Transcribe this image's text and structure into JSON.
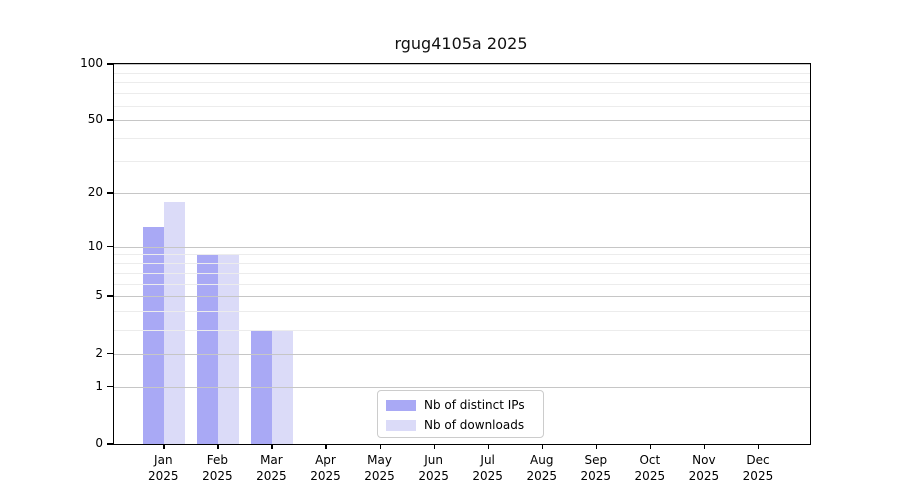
{
  "chart_data": {
    "type": "bar",
    "title": "rgug4105a 2025",
    "categories": [
      "Jan",
      "Feb",
      "Mar",
      "Apr",
      "May",
      "Jun",
      "Jul",
      "Aug",
      "Sep",
      "Oct",
      "Nov",
      "Dec"
    ],
    "category_year": "2025",
    "series": [
      {
        "name": "Nb of distinct IPs",
        "color": "#a9a9f5",
        "values": [
          13,
          9,
          3,
          0,
          0,
          0,
          0,
          0,
          0,
          0,
          0,
          0
        ]
      },
      {
        "name": "Nb of downloads",
        "color": "#dbdbf8",
        "values": [
          18,
          9,
          3,
          0,
          0,
          0,
          0,
          0,
          0,
          0,
          0,
          0
        ]
      }
    ],
    "y_ticks": [
      0,
      1,
      2,
      5,
      10,
      20,
      50,
      100
    ],
    "y_minor_gridlines": [
      3,
      4,
      6,
      7,
      8,
      9,
      30,
      40,
      60,
      70,
      80,
      90
    ],
    "y_scale": "log10(value+1)",
    "ylim": [
      0,
      100
    ],
    "grid": true,
    "legend_position": "bottom-center",
    "colors": {
      "major_grid": "#c6c6c6",
      "minor_grid": "#ececec",
      "axis": "#000000",
      "background": "#ffffff"
    }
  }
}
